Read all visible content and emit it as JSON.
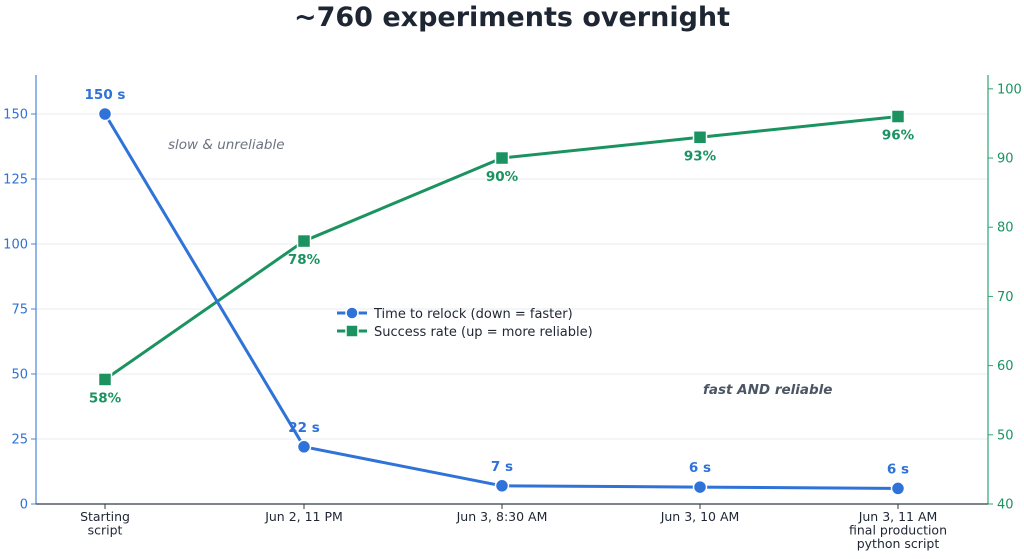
{
  "chart_data": {
    "type": "line",
    "title": "~760 experiments overnight",
    "categories": [
      [
        "Starting",
        "script"
      ],
      [
        "Jun 2, 11 PM"
      ],
      [
        "Jun 3, 8:30 AM"
      ],
      [
        "Jun 3, 10 AM"
      ],
      [
        "Jun 3, 11 AM",
        "final production",
        "python script"
      ]
    ],
    "series": [
      {
        "name": "Time to relock (down = faster)",
        "axis": "left",
        "color": "#2f72d8",
        "marker": "circle",
        "values": [
          150,
          22,
          7,
          6.5,
          6
        ],
        "labels": [
          "150 s",
          "22 s",
          "7 s",
          "6 s",
          "6 s"
        ]
      },
      {
        "name": "Success rate (up = more reliable)",
        "axis": "right",
        "color": "#1a9360",
        "marker": "square",
        "values": [
          58,
          78,
          90,
          93,
          96
        ],
        "labels": [
          "58%",
          "78%",
          "90%",
          "93%",
          "96%"
        ]
      }
    ],
    "ylim_left": [
      0,
      165
    ],
    "yticks_left": [
      0,
      25,
      50,
      75,
      100,
      125,
      150
    ],
    "ylim_right": [
      40,
      102
    ],
    "yticks_right": [
      40,
      50,
      60,
      70,
      80,
      90,
      100
    ],
    "grid": true,
    "legend_position": "center",
    "annotations": [
      "slow & unreliable",
      "fast AND reliable"
    ]
  }
}
